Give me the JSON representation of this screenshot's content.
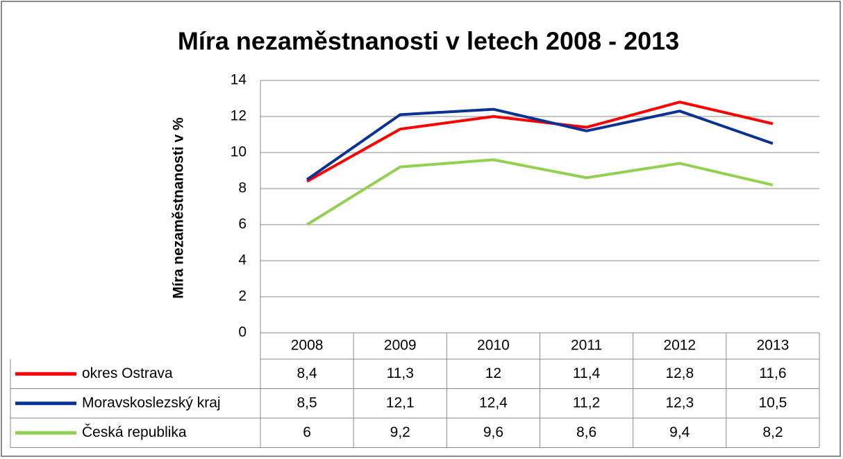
{
  "chart_data": {
    "type": "line",
    "title": "Míra nezaměstnanosti v letech 2008 - 2013",
    "y_label": "Míra nezaměstnanosti v %",
    "categories": [
      "2008",
      "2009",
      "2010",
      "2011",
      "2012",
      "2013"
    ],
    "series": [
      {
        "name": "okres Ostrava",
        "color": "#ff0000",
        "values": [
          8.4,
          11.3,
          12,
          11.4,
          12.8,
          11.6
        ],
        "value_labels": [
          "8,4",
          "11,3",
          "12",
          "11,4",
          "12,8",
          "11,6"
        ]
      },
      {
        "name": "Moravskoslezský kraj",
        "color": "#0a3296",
        "values": [
          8.5,
          12.1,
          12.4,
          11.2,
          12.3,
          10.5
        ],
        "value_labels": [
          "8,5",
          "12,1",
          "12,4",
          "11,2",
          "12,3",
          "10,5"
        ]
      },
      {
        "name": "Česká republika",
        "color": "#92d050",
        "values": [
          6,
          9.2,
          9.6,
          8.6,
          9.4,
          8.2
        ],
        "value_labels": [
          "6",
          "9,2",
          "9,6",
          "8,6",
          "9,4",
          "8,2"
        ]
      }
    ],
    "ylim": [
      0,
      14
    ],
    "yticks": [
      0,
      2,
      4,
      6,
      8,
      10,
      12,
      14
    ],
    "grid": true
  }
}
